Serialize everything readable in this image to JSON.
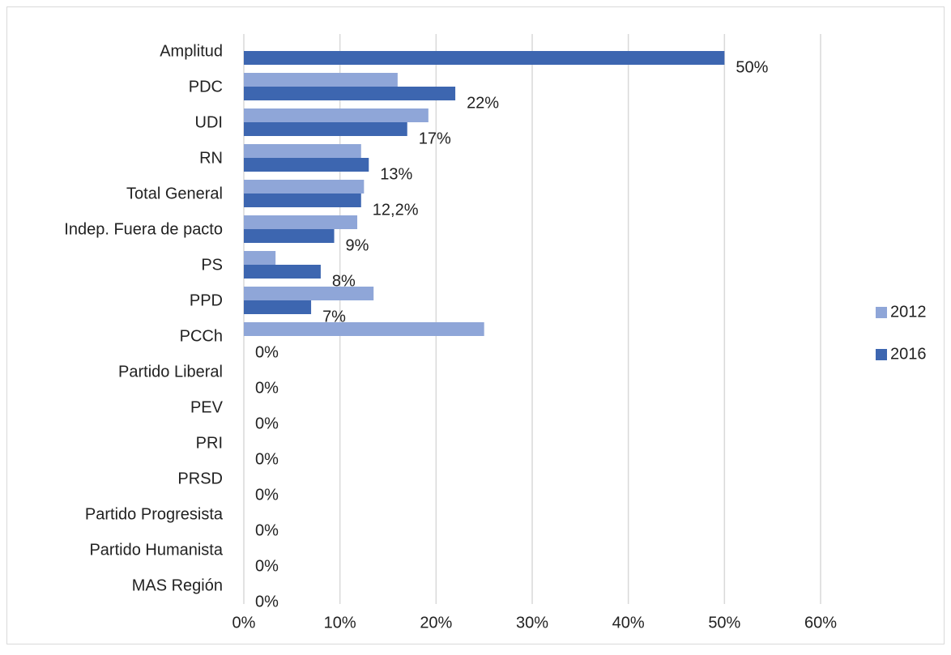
{
  "chart_data": {
    "type": "hbar",
    "categories": [
      "Amplitud",
      "PDC",
      "UDI",
      "RN",
      "Total General",
      "Indep. Fuera de pacto",
      "PS",
      "PPD",
      "PCCh",
      "Partido Liberal",
      "PEV",
      "PRI",
      "PRSD",
      "Partido Progresista",
      "Partido Humanista",
      "MAS Región"
    ],
    "series": [
      {
        "name": "2012",
        "color": "#8fa6d8",
        "values": [
          null,
          16,
          19.2,
          12.2,
          12.5,
          11.8,
          3.3,
          13.5,
          25,
          0,
          0,
          0,
          0,
          0,
          0,
          0
        ]
      },
      {
        "name": "2016",
        "color": "#3d66b0",
        "values": [
          50,
          22,
          17,
          13,
          12.2,
          9.4,
          8,
          7,
          0,
          0,
          0,
          0,
          0,
          0,
          0,
          0
        ],
        "value_labels": [
          "50%",
          "22%",
          "17%",
          "13%",
          "12,2%",
          "9%",
          "8%",
          "7%",
          "0%",
          "0%",
          "0%",
          "0%",
          "0%",
          "0%",
          "0%",
          "0%"
        ]
      }
    ],
    "xlim": [
      0,
      60
    ],
    "xticks": [
      {
        "value": 0,
        "label": "0%"
      },
      {
        "value": 10,
        "label": "10%"
      },
      {
        "value": 20,
        "label": "20%"
      },
      {
        "value": 30,
        "label": "30%"
      },
      {
        "value": 40,
        "label": "40%"
      },
      {
        "value": 50,
        "label": "50%"
      },
      {
        "value": 60,
        "label": "60%"
      }
    ],
    "grid": true,
    "legend": "right"
  }
}
